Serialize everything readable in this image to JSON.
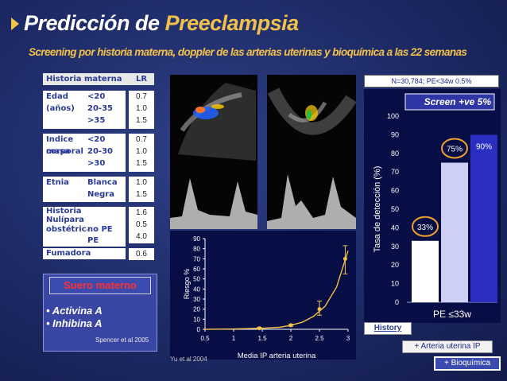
{
  "header": {
    "title_part1": "Predicción de ",
    "title_part2": "Preeclampsia",
    "subtitle": "Screening por historia materna, doppler de las arterias uterinas y bioquímica a las 22 semanas"
  },
  "table": {
    "header_label": "Historia materna",
    "header_lr": "LR",
    "rows": [
      {
        "label_lines": [
          "Edad (años)",
          "",
          ""
        ],
        "sub_lines": [
          "<20",
          "20-35",
          ">35"
        ],
        "lr_lines": [
          "0.7",
          "1.0",
          "1.5"
        ]
      },
      {
        "label_lines": [
          "Indice masa",
          "corporal",
          ""
        ],
        "sub_lines": [
          "<20",
          "20-30",
          ">30"
        ],
        "lr_lines": [
          "0.7",
          "1.0",
          "1.5"
        ]
      },
      {
        "label_lines": [
          "Etnia",
          ""
        ],
        "sub_lines": [
          "Blanca",
          "Negra"
        ],
        "lr_lines": [
          "1.0",
          "1.5"
        ]
      },
      {
        "label_lines": [
          "Historia",
          "Nulípara",
          "obstétrica",
          ""
        ],
        "sub_lines": [
          "",
          "",
          "no PE",
          "PE"
        ],
        "lr_lines": [
          "1.6",
          "0.5",
          "4.0"
        ]
      },
      {
        "label_lines": [
          "Fumadora"
        ],
        "sub_lines": [
          ""
        ],
        "lr_lines": [
          "0.6"
        ]
      }
    ]
  },
  "serum": {
    "title": "Suero materno",
    "items": [
      "Activina A",
      "Inhibina A"
    ],
    "citation": "Spencer et al 2005"
  },
  "doppler": {
    "citation": "Yu et al 2004"
  },
  "chart_data": [
    {
      "type": "scatter",
      "title": "",
      "xlabel": "Media IP arteria uterina",
      "ylabel": "Riesgo %",
      "xlim": [
        0.5,
        3
      ],
      "ylim": [
        0,
        90
      ],
      "xticks": [
        0.5,
        1,
        1.5,
        2,
        2.5,
        3
      ],
      "yticks": [
        0,
        10,
        20,
        30,
        40,
        50,
        60,
        70,
        80,
        90
      ],
      "grid": false,
      "points": [
        {
          "x": 1.45,
          "y": 1,
          "err_low": 0,
          "err_high": 2
        },
        {
          "x": 2.0,
          "y": 4,
          "err_low": 3,
          "err_high": 5
        },
        {
          "x": 2.5,
          "y": 20,
          "err_low": 14,
          "err_high": 28
        },
        {
          "x": 2.95,
          "y": 70,
          "err_low": 55,
          "err_high": 83
        }
      ],
      "curve": {
        "x": [
          0.5,
          1.0,
          1.5,
          1.8,
          2.0,
          2.2,
          2.4,
          2.6,
          2.8,
          3.0
        ],
        "y": [
          0,
          0.3,
          1,
          2,
          4,
          7,
          13,
          23,
          42,
          78
        ]
      }
    },
    {
      "type": "bar",
      "title": "Screen +ve 5%",
      "note": "N=30,784; PE<34w 0.5%",
      "xlabel": "PE ≤33w",
      "ylabel": "Tasa de detección (%)",
      "ylim": [
        0,
        100
      ],
      "yticks": [
        0,
        10,
        20,
        30,
        40,
        50,
        60,
        70,
        80,
        90,
        100
      ],
      "categories": [
        "History",
        "+ Arteria uterina IP",
        "+ Bioquímica"
      ],
      "values": [
        33,
        75,
        90
      ],
      "labels": [
        "33%",
        "75%",
        "90%"
      ],
      "colors": {
        "history": "#ffffff",
        "arteria": "#cdd0f4",
        "bioq": "#2b2ec0",
        "circle": "#f0a030"
      }
    }
  ]
}
